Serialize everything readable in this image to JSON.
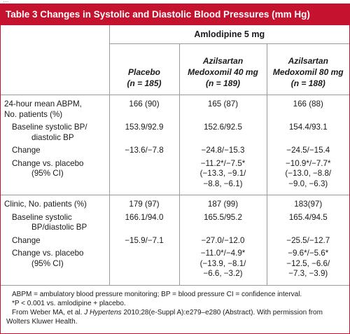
{
  "table": {
    "title": "Table 3  Changes in Systolic and Diastolic Blood Pressures (mm Hg)",
    "group_header": "Amlodipine 5 mg",
    "columns": [
      {
        "line1": "Placebo",
        "line2": "(n = 185)"
      },
      {
        "line1": "Azilsartan",
        "line2": "Medoxomil 40 mg",
        "line3": "(n = 189)"
      },
      {
        "line1": "Azilsartan",
        "line2": "Medoxomil 80 mg",
        "line3": "(n = 188)"
      }
    ],
    "sections": [
      {
        "rows": [
          {
            "label": [
              "24-hour mean ABPM,",
              "No. patients (%)"
            ],
            "indent": 0,
            "values": [
              "166 (90)",
              "165 (87)",
              "166 (88)"
            ]
          },
          {
            "label": [
              "Baseline systolic BP/",
              "diastolic BP"
            ],
            "indent": 1,
            "values": [
              "153.9/92.9",
              "152.6/92.5",
              "154.4/93.1"
            ]
          },
          {
            "label": [
              "Change"
            ],
            "indent": 1,
            "values": [
              "−13.6/−7.8",
              "−24.8/−15.3",
              "−24.5/−15.4"
            ]
          },
          {
            "label": [
              "Change vs. placebo",
              "(95% CI)"
            ],
            "indent": 1,
            "values": [
              "",
              "−11.2*/−7.5*\n(−13.3, −9.1/\n−8.8, −6.1)",
              "−10.9*/−7.7*\n(−13.0, −8.8/\n−9.0, −6.3)"
            ]
          }
        ]
      },
      {
        "rows": [
          {
            "label": [
              "Clinic, No. patients (%)"
            ],
            "indent": 0,
            "values": [
              "179 (97)",
              "187 (99)",
              "183(97)"
            ]
          },
          {
            "label": [
              "Baseline systolic",
              "BP/diastolic BP"
            ],
            "indent": 1,
            "values": [
              "166.1/94.0",
              "165.5/95.2",
              "165.4/94.5"
            ]
          },
          {
            "label": [
              "Change"
            ],
            "indent": 1,
            "values": [
              "−15.9/−7.1",
              "−27.0/−12.0",
              "−25.5/−12.7"
            ]
          },
          {
            "label": [
              "Change vs. placebo",
              "(95% CI)"
            ],
            "indent": 1,
            "values": [
              "",
              "−11.0*/−4.9*\n(−13.9, −8.1/\n−6.6, −3.2)",
              "−9.6*/−5.6*\n−12.5, −6.6/\n−7.3, −3.9)"
            ]
          }
        ]
      }
    ],
    "footnotes": {
      "abbrev": "ABPM = ambulatory blood pressure monitoring; BP = blood pressure CI = confidence interval.",
      "sig": "*P < 0.001 vs. amlodipine + placebo.",
      "source_pre": "From Weber MA, et al. ",
      "source_journal": "J Hypertens",
      "source_post": " 2010;28(e-Suppl A):e279–e280 (Abstract). With permission from Wolters Kluwer Health."
    }
  }
}
